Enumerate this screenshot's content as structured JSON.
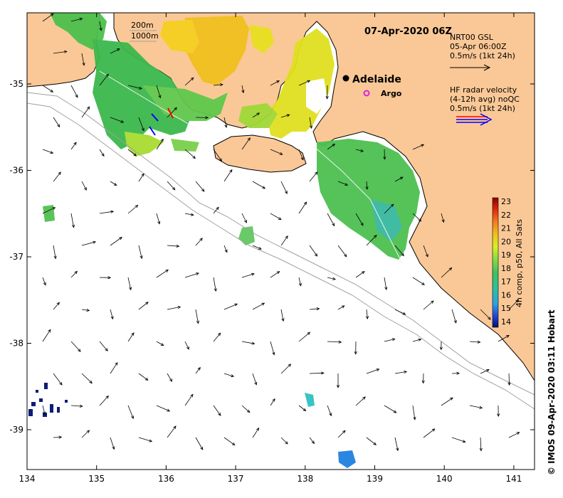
{
  "map": {
    "title_time": "07-Apr-2020 06Z",
    "city_label": "Adelaide",
    "argo_label": "Argo",
    "bathy": {
      "contour1": "200m",
      "contour2": "1000m"
    },
    "legend_gsl": {
      "line1": "NRT00 GSL",
      "line2": "05-Apr 06:00Z",
      "line3": "0.5m/s (1kt 24h)"
    },
    "legend_hf": {
      "line1": "HF radar velocity",
      "line2": "(4-12h avg) noQC",
      "line3": "0.5m/s (1kt 24h)"
    },
    "colorbar": {
      "ticks": [
        "23",
        "22",
        "21",
        "20",
        "19",
        "18",
        "17",
        "16",
        "15",
        "14"
      ],
      "label": "4h comp, p50, All Sats",
      "colors": [
        "#8b0000",
        "#e03010",
        "#f07820",
        "#f0c020",
        "#d8f020",
        "#98e040",
        "#40c060",
        "#30c0a0",
        "#30a0e0",
        "#2040d0",
        "#001070"
      ]
    },
    "x_ticks": [
      "134",
      "135",
      "136",
      "137",
      "138",
      "139",
      "140",
      "141"
    ],
    "y_ticks": [
      "-35",
      "-36",
      "-37",
      "-38",
      "-39"
    ],
    "credit": "© IMOS 09-Apr-2020 03:11 Hobart",
    "colors": {
      "land": "#fac896",
      "sea": "#ffffff",
      "coast": "#000000",
      "bathy_line": "#a0a0a0",
      "argo": "#e020e0",
      "vector_red": "#ff0000",
      "vector_blue": "#0000ff"
    }
  }
}
